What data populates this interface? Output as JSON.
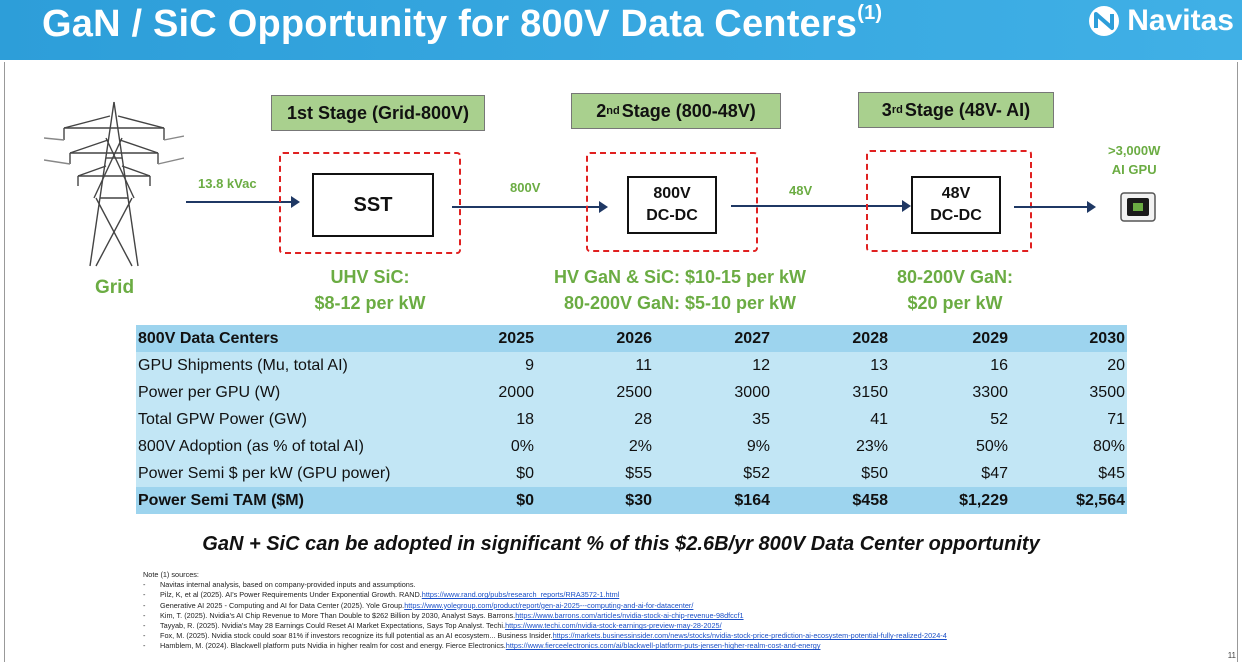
{
  "header": {
    "title": "GaN / SiC Opportunity for 800V Data Centers",
    "title_superscript": "(1)",
    "logo_text": "Navitas"
  },
  "diagram": {
    "grid_label": "Grid",
    "input_voltage": "13.8 kVac",
    "stages": [
      {
        "title_prefix": "1st Stage (Grid-800V)",
        "title_sup": "",
        "title_rest": "",
        "block_line1": "SST",
        "block_line2": "",
        "cost_line1": "UHV SiC:",
        "cost_line2": "$8-12 per kW"
      },
      {
        "title_prefix": "2",
        "title_sup": "nd",
        "title_rest": "Stage (800-48V)",
        "block_line1": "800V",
        "block_line2": "DC-DC",
        "cost_line1": "HV GaN & SiC:  $10-15 per kW",
        "cost_line2": "80-200V GaN: $5-10 per kW"
      },
      {
        "title_prefix": "3",
        "title_sup": "rd",
        "title_rest": "Stage (48V- AI)",
        "block_line1": "48V",
        "block_line2": "DC-DC",
        "cost_line1": "80-200V GaN:",
        "cost_line2": "$20 per kW"
      }
    ],
    "link_labels": [
      "800V",
      "48V"
    ],
    "gpu_label_line1": ">3,000W",
    "gpu_label_line2": "AI GPU"
  },
  "table": {
    "headers": [
      "800V Data Centers",
      "2025",
      "2026",
      "2027",
      "2028",
      "2029",
      "2030"
    ],
    "rows": [
      [
        "GPU Shipments (Mu, total AI)",
        "9",
        "11",
        "12",
        "13",
        "16",
        "20"
      ],
      [
        "Power per GPU (W)",
        "2000",
        "2500",
        "3000",
        "3150",
        "3300",
        "3500"
      ],
      [
        "Total GPW Power (GW)",
        "18",
        "28",
        "35",
        "41",
        "52",
        "71"
      ],
      [
        "800V Adoption (as % of total AI)",
        "0%",
        "2%",
        "9%",
        "23%",
        "50%",
        "80%"
      ],
      [
        "Power Semi $ per kW (GPU power)",
        "$0",
        "$55",
        "$52",
        "$50",
        "$47",
        "$45"
      ]
    ],
    "total_row": [
      "Power Semi TAM ($M)",
      "$0",
      "$30",
      "$164",
      "$458",
      "$1,229",
      "$2,564"
    ]
  },
  "tagline": "GaN + SiC can be adopted in significant % of this $2.6B/yr 800V Data Center opportunity",
  "notes": {
    "heading": "Note (1) sources:",
    "items": [
      {
        "text": "Navitas internal analysis, based on company-provided inputs and assumptions.",
        "link": ""
      },
      {
        "text": "Pilz, K, et al (2025). AI's Power Requirements Under Exponential Growth. RAND. ",
        "link": "https://www.rand.org/pubs/research_reports/RRA3572-1.html"
      },
      {
        "text": "Generative AI 2025 - Computing and AI for Data Center (2025). Yole Group. ",
        "link": "https://www.yolegroup.com/product/report/gen-ai-2025---computing-and-ai-for-datacenter/"
      },
      {
        "text": "Kim, T. (2025). Nvidia's AI Chip Revenue to More Than Double to $262 Billion by 2030, Analyst Says. Barrons. ",
        "link": "https://www.barrons.com/articles/nvidia-stock-ai-chip-revenue-98dfccf1"
      },
      {
        "text": "Tayyab, R. (2025). Nvidia's May 28 Earnings Could Reset AI Market Expectations, Says Top Analyst. Techi. ",
        "link": "https://www.techi.com/nvidia-stock-earnings-preview-may-28-2025/"
      },
      {
        "text": "Fox, M. (2025). Nvidia stock could soar 81% if investors recognize its full potential as an AI ecosystem... Business Insider. ",
        "link": "https://markets.businessinsider.com/news/stocks/nvidia-stock-price-prediction-ai-ecosystem-potential-fully-realized-2024-4"
      },
      {
        "text": "Hamblem, M. (2024). Blackwell platform puts Nvidia in higher realm for cost and energy. Fierce Electronics. ",
        "link": "https://www.fierceelectronics.com/ai/blackwell-platform-puts-jensen-higher-realm-cost-and-energy"
      }
    ]
  },
  "page_number": "11",
  "colors": {
    "header": "#2d9ed9",
    "accent_green": "#6bac43",
    "stage_fill": "#a9d08e",
    "dash_red": "#e02020",
    "table_dark": "#9dd4ee",
    "table_light": "#c2e6f5"
  }
}
